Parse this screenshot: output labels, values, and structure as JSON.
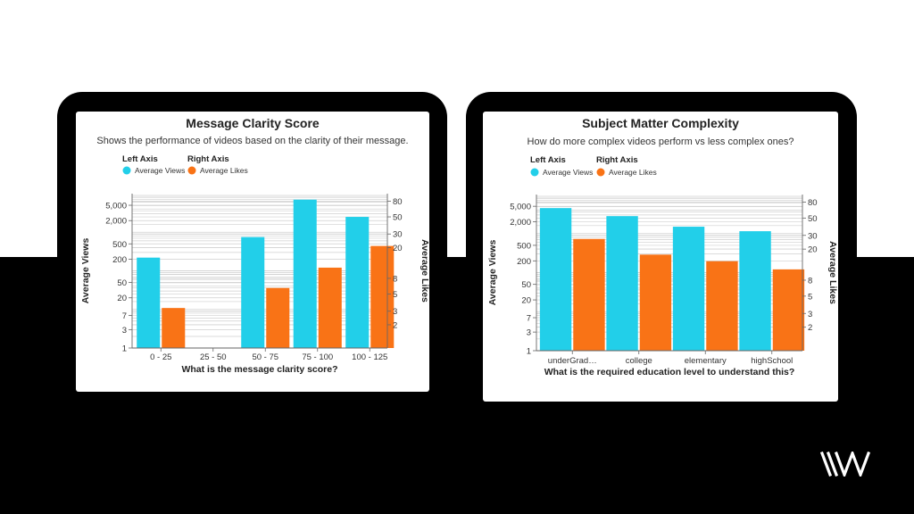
{
  "colors": {
    "views": "#22cfe9",
    "likes": "#f97316",
    "frame": "#000000",
    "grid": "#cfcfcf"
  },
  "brand": {
    "icon": "brand-logo-icon",
    "color": "#ffffff"
  },
  "chart_data": [
    {
      "type": "bar",
      "title": "Message Clarity Score",
      "subtitle": "Shows the performance of videos based on the clarity of their message.",
      "legend": {
        "left_heading": "Left Axis",
        "left_label": "Average Views",
        "right_heading": "Right Axis",
        "right_label": "Average Likes"
      },
      "xlabel": "What is the message clarity score?",
      "ylabel_left": "Average Views",
      "ylabel_right": "Average Likes",
      "categories": [
        "0 - 25",
        "25 - 50",
        "50 - 75",
        "75 - 100",
        "100 - 125"
      ],
      "series": [
        {
          "name": "Average Views",
          "axis": "left",
          "values": [
            220,
            null,
            750,
            7000,
            2500
          ]
        },
        {
          "name": "Average Likes",
          "axis": "right",
          "values": [
            3.3,
            null,
            6,
            11,
            21
          ]
        }
      ],
      "y_left": {
        "scale": "log",
        "ylim": [
          1,
          10000
        ],
        "ticks": [
          1,
          3,
          7,
          20,
          50,
          200,
          500,
          2000,
          5000
        ],
        "tick_labels": [
          "1",
          "3",
          "7",
          "20",
          "50",
          "200",
          "500",
          "2,000",
          "5,000"
        ]
      },
      "y_right": {
        "scale": "log",
        "ylim": [
          1,
          100
        ],
        "ticks": [
          2,
          3,
          5,
          8,
          20,
          30,
          50,
          80
        ],
        "tick_labels": [
          "2",
          "3",
          "5",
          "8",
          "20",
          "30",
          "50",
          "80"
        ]
      }
    },
    {
      "type": "bar",
      "title": "Subject Matter Complexity",
      "subtitle": "How do more complex videos perform vs less complex ones?",
      "legend": {
        "left_heading": "Left Axis",
        "left_label": "Average Views",
        "right_heading": "Right Axis",
        "right_label": "Average Likes"
      },
      "xlabel": "What is the required education level to understand this?",
      "ylabel_left": "Average Views",
      "ylabel_right": "Average Likes",
      "categories": [
        "underGrad…",
        "college",
        "elementary",
        "highSchool"
      ],
      "series": [
        {
          "name": "Average Views",
          "axis": "left",
          "values": [
            4500,
            2800,
            1500,
            1150
          ]
        },
        {
          "name": "Average Likes",
          "axis": "right",
          "values": [
            27,
            17,
            14,
            11
          ]
        }
      ],
      "y_left": {
        "scale": "log",
        "ylim": [
          1,
          10000
        ],
        "ticks": [
          1,
          3,
          7,
          20,
          50,
          200,
          500,
          2000,
          5000
        ],
        "tick_labels": [
          "1",
          "3",
          "7",
          "20",
          "50",
          "200",
          "500",
          "2,000",
          "5,000"
        ]
      },
      "y_right": {
        "scale": "log",
        "ylim": [
          1,
          100
        ],
        "ticks": [
          2,
          3,
          5,
          8,
          20,
          30,
          50,
          80
        ],
        "tick_labels": [
          "2",
          "3",
          "5",
          "8",
          "20",
          "30",
          "50",
          "80"
        ]
      }
    }
  ]
}
